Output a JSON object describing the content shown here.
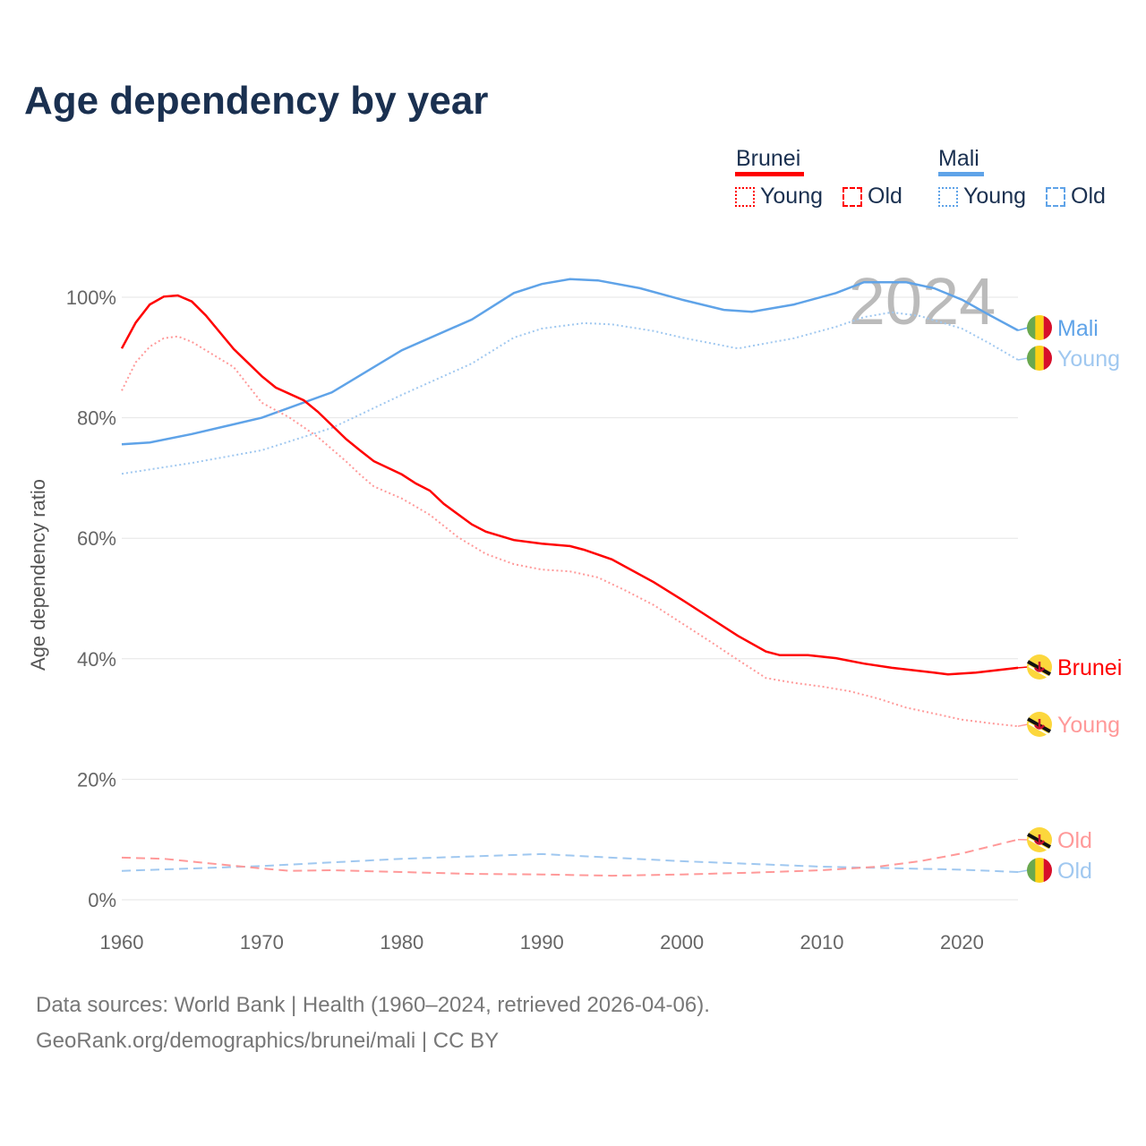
{
  "title": "Age dependency by year",
  "legend": {
    "groups": [
      {
        "name": "Brunei",
        "color": "#ff0000",
        "items": [
          "Young",
          "Old"
        ]
      },
      {
        "name": "Mali",
        "color": "#5fa3e8",
        "items": [
          "Young",
          "Old"
        ]
      }
    ]
  },
  "year_watermark": "2024",
  "footer": {
    "line1": "Data sources: World Bank | Health (1960–2024, retrieved 2026-04-06).",
    "line2": "GeoRank.org/demographics/brunei/mali | CC BY"
  },
  "chart_data": {
    "type": "line",
    "title": "Age dependency by year",
    "ylabel": "Age dependency ratio",
    "xlabel": "",
    "xlim": [
      1960,
      2024
    ],
    "ylim": [
      0,
      105
    ],
    "xticks": [
      1960,
      1970,
      1980,
      1990,
      2000,
      2010,
      2020
    ],
    "xtick_labels": [
      "1960",
      "1970",
      "1980",
      "1990",
      "2000",
      "2010",
      "2020"
    ],
    "yticks": [
      0,
      20,
      40,
      60,
      80,
      100
    ],
    "ytick_labels": [
      "0%",
      "20%",
      "40%",
      "60%",
      "80%",
      "100%"
    ],
    "grid": true,
    "series": [
      {
        "name": "Mali",
        "end_label": "Mali",
        "color": "#5fa3e8",
        "dash": "solid",
        "label_color": "#5fa3e8",
        "flag": "mali",
        "x": [
          1960,
          1962,
          1965,
          1970,
          1975,
          1980,
          1985,
          1988,
          1990,
          1992,
          1994,
          1997,
          2000,
          2003,
          2005,
          2008,
          2011,
          2013,
          2016,
          2018,
          2020,
          2022,
          2024
        ],
        "y": [
          75.6,
          75.9,
          77.3,
          80,
          84.2,
          91.2,
          96.3,
          100.7,
          102.2,
          103,
          102.8,
          101.5,
          99.6,
          97.9,
          97.6,
          98.8,
          100.7,
          102.5,
          102.5,
          101.5,
          99.6,
          97,
          94.5
        ]
      },
      {
        "name": "Mali Young",
        "end_label": "Young",
        "color": "#a0c8f0",
        "dash": "dotted",
        "label_color": "#a0c8f0",
        "flag": "mali",
        "x": [
          1960,
          1965,
          1970,
          1975,
          1980,
          1985,
          1988,
          1990,
          1993,
          1995,
          1998,
          2000,
          2004,
          2008,
          2011,
          2013,
          2015,
          2017,
          2020,
          2022,
          2024
        ],
        "y": [
          70.7,
          72.5,
          74.6,
          78.3,
          83.8,
          89,
          93.3,
          94.8,
          95.7,
          95.5,
          94.4,
          93.3,
          91.5,
          93.2,
          95.1,
          96.7,
          97.5,
          96.9,
          94.8,
          92.3,
          89.6
        ]
      },
      {
        "name": "Mali Old",
        "end_label": "Old",
        "color": "#a0c8f0",
        "dash": "dashed",
        "label_color": "#a0c8f0",
        "flag": "mali",
        "x": [
          1960,
          1970,
          1980,
          1990,
          2000,
          2010,
          2020,
          2024
        ],
        "y": [
          4.8,
          5.6,
          6.8,
          7.6,
          6.4,
          5.5,
          5,
          4.6
        ]
      },
      {
        "name": "Brunei",
        "end_label": "Brunei",
        "color": "#ff0000",
        "dash": "solid",
        "label_color": "#ff0000",
        "flag": "brunei",
        "x": [
          1960,
          1961,
          1962,
          1963,
          1964,
          1965,
          1966,
          1968,
          1970,
          1971,
          1973,
          1974,
          1976,
          1977,
          1978,
          1980,
          1981,
          1982,
          1983,
          1985,
          1986,
          1988,
          1990,
          1992,
          1993,
          1995,
          1998,
          2000,
          2002,
          2004,
          2006,
          2007,
          2009,
          2011,
          2013,
          2015,
          2018,
          2019,
          2021,
          2024
        ],
        "y": [
          91.5,
          95.8,
          98.8,
          100.1,
          100.3,
          99.3,
          97,
          91.4,
          86.9,
          85,
          82.9,
          81,
          76.5,
          74.6,
          72.8,
          70.6,
          69.1,
          67.9,
          65.7,
          62.3,
          61.1,
          59.7,
          59.1,
          58.7,
          58.1,
          56.5,
          52.7,
          49.8,
          46.8,
          43.8,
          41.2,
          40.6,
          40.6,
          40.1,
          39.2,
          38.5,
          37.7,
          37.4,
          37.7,
          38.5
        ]
      },
      {
        "name": "Brunei Young",
        "end_label": "Young",
        "color": "#ff9999",
        "dash": "dotted",
        "label_color": "#ff9999",
        "flag": "brunei",
        "x": [
          1960,
          1961,
          1962,
          1963,
          1964,
          1965,
          1968,
          1970,
          1972,
          1974,
          1976,
          1977,
          1978,
          1980,
          1982,
          1984,
          1986,
          1988,
          1990,
          1992,
          1994,
          1996,
          1998,
          2000,
          2002,
          2004,
          2006,
          2008,
          2010,
          2012,
          2014,
          2016,
          2018,
          2020,
          2022,
          2024
        ],
        "y": [
          84.5,
          89.2,
          91.8,
          93.2,
          93.5,
          92.6,
          88.4,
          82.5,
          80,
          76.8,
          72.8,
          70.6,
          68.6,
          66.6,
          63.9,
          60.2,
          57.4,
          55.7,
          54.8,
          54.5,
          53.5,
          51.3,
          48.9,
          45.9,
          42.9,
          39.8,
          36.8,
          36,
          35.4,
          34.6,
          33.4,
          31.9,
          30.9,
          29.9,
          29.3,
          28.8
        ]
      },
      {
        "name": "Brunei Old",
        "end_label": "Old",
        "color": "#ff9999",
        "dash": "dashed",
        "label_color": "#ff9999",
        "flag": "brunei",
        "x": [
          1960,
          1963,
          1966,
          1970,
          1972,
          1975,
          1980,
          1985,
          1990,
          1995,
          2000,
          2005,
          2010,
          2014,
          2017,
          2020,
          2024
        ],
        "y": [
          7,
          6.8,
          6.1,
          5.2,
          4.8,
          4.9,
          4.6,
          4.3,
          4.2,
          4,
          4.2,
          4.5,
          4.9,
          5.5,
          6.4,
          7.7,
          10
        ]
      }
    ]
  }
}
